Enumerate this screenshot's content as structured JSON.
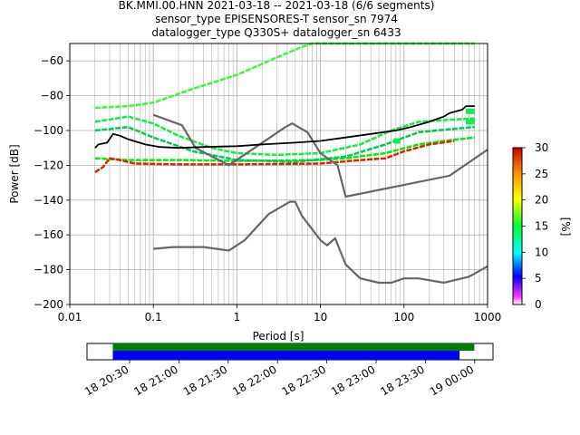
{
  "title_lines": [
    "BK.MMI.00.HNN   2021-03-18 -- 2021-03-18  (6/6 segments)",
    "sensor_type EPISENSORES-T sensor_sn 7974",
    "datalogger_type Q330S+ datalogger_sn 6433"
  ],
  "chart_data": [
    {
      "type": "heatmap",
      "subtype": "ppsd",
      "xlabel": "Period [s]",
      "ylabel": "Power [dB]",
      "xscale": "log",
      "xlim": [
        0.01,
        1000
      ],
      "ylim": [
        -200,
        -50
      ],
      "x_ticks": [
        "0.01",
        "0.1",
        "1",
        "10",
        "100",
        "1000"
      ],
      "y_ticks": [
        "−200",
        "−180",
        "−160",
        "−140",
        "−120",
        "−100",
        "−80",
        "−60"
      ],
      "grid": true,
      "colorbar": {
        "label": "[%]",
        "range": [
          0,
          30
        ],
        "ticks": [
          "0",
          "5",
          "10",
          "15",
          "20",
          "25",
          "30"
        ]
      },
      "noise_models": {
        "high": [
          [
            0.1,
            -91
          ],
          [
            0.22,
            -97
          ],
          [
            0.32,
            -110
          ],
          [
            0.8,
            -120
          ],
          [
            3.8,
            -98
          ],
          [
            4.6,
            -96
          ],
          [
            7,
            -101
          ],
          [
            10,
            -113
          ],
          [
            15,
            -119
          ],
          [
            16,
            -120
          ],
          [
            20,
            -138
          ],
          [
            350,
            -126
          ],
          [
            1000,
            -111
          ]
        ],
        "low": [
          [
            0.1,
            -168
          ],
          [
            0.17,
            -167
          ],
          [
            0.4,
            -167
          ],
          [
            0.8,
            -169
          ],
          [
            1.24,
            -163
          ],
          [
            2.4,
            -148
          ],
          [
            4.3,
            -141
          ],
          [
            5,
            -141
          ],
          [
            6,
            -149
          ],
          [
            10,
            -163
          ],
          [
            12,
            -166
          ],
          [
            15,
            -162
          ],
          [
            20,
            -177
          ],
          [
            30,
            -185
          ],
          [
            50,
            -187.5
          ],
          [
            70,
            -187.5
          ],
          [
            100,
            -185
          ],
          [
            150,
            -185
          ],
          [
            300,
            -187.5
          ],
          [
            600,
            -184
          ],
          [
            1000,
            -178
          ]
        ]
      },
      "mean_curve": [
        [
          0.02,
          -110
        ],
        [
          0.022,
          -108
        ],
        [
          0.028,
          -107
        ],
        [
          0.033,
          -102
        ],
        [
          0.04,
          -103
        ],
        [
          0.05,
          -105
        ],
        [
          0.08,
          -108
        ],
        [
          0.12,
          -109.5
        ],
        [
          0.2,
          -110
        ],
        [
          0.4,
          -109.5
        ],
        [
          1,
          -109
        ],
        [
          2,
          -108
        ],
        [
          5,
          -107
        ],
        [
          10,
          -106
        ],
        [
          20,
          -104
        ],
        [
          40,
          -102
        ],
        [
          80,
          -100
        ],
        [
          120,
          -98
        ],
        [
          200,
          -95
        ],
        [
          300,
          -92
        ],
        [
          350,
          -90
        ],
        [
          500,
          -88
        ],
        [
          550,
          -86
        ],
        [
          700,
          -86
        ]
      ],
      "density_bands": [
        {
          "name": "lower",
          "color": "#00ee00",
          "points": [
            [
              0.02,
              -116
            ],
            [
              0.05,
              -117
            ],
            [
              0.2,
              -117
            ],
            [
              1,
              -117.5
            ],
            [
              10,
              -117
            ],
            [
              20,
              -116
            ],
            [
              60,
              -113
            ],
            [
              150,
              -108
            ],
            [
              300,
              -106
            ],
            [
              700,
              -104
            ]
          ]
        },
        {
          "name": "upper",
          "color": "#33ff33",
          "points": [
            [
              0.02,
              -87
            ],
            [
              0.05,
              -86
            ],
            [
              0.1,
              -84
            ],
            [
              0.3,
              -76
            ],
            [
              1,
              -68
            ],
            [
              3,
              -58
            ],
            [
              6,
              -52
            ],
            [
              8,
              -50
            ],
            [
              700,
              -50
            ]
          ]
        },
        {
          "name": "mid1",
          "color": "#11ee44",
          "points": [
            [
              0.02,
              -95
            ],
            [
              0.05,
              -92
            ],
            [
              0.1,
              -96
            ],
            [
              0.2,
              -103
            ],
            [
              0.5,
              -110
            ],
            [
              1,
              -113
            ],
            [
              3,
              -114
            ],
            [
              10,
              -113
            ],
            [
              30,
              -108
            ],
            [
              70,
              -100
            ],
            [
              150,
              -95
            ],
            [
              300,
              -94
            ],
            [
              700,
              -93
            ]
          ]
        },
        {
          "name": "mid2",
          "color": "#00cc55",
          "points": [
            [
              0.02,
              -100
            ],
            [
              0.05,
              -98
            ],
            [
              0.1,
              -104
            ],
            [
              0.3,
              -112
            ],
            [
              1,
              -117
            ],
            [
              5,
              -118
            ],
            [
              20,
              -115
            ],
            [
              60,
              -108
            ],
            [
              150,
              -101
            ],
            [
              400,
              -99
            ],
            [
              700,
              -98
            ]
          ]
        },
        {
          "name": "low-red",
          "color": "#dd2200",
          "points": [
            [
              0.02,
              -124
            ],
            [
              0.025,
              -121
            ],
            [
              0.03,
              -116
            ],
            [
              0.04,
              -117
            ],
            [
              0.06,
              -119
            ],
            [
              0.2,
              -119.5
            ],
            [
              1,
              -119.5
            ],
            [
              10,
              -119
            ],
            [
              30,
              -117
            ],
            [
              60,
              -116
            ],
            [
              100,
              -112
            ],
            [
              200,
              -108
            ],
            [
              400,
              -106
            ]
          ]
        }
      ],
      "patches": [
        {
          "x": [
            550,
            700
          ],
          "y": -89,
          "color": "#11ee55"
        },
        {
          "x": [
            550,
            700
          ],
          "y": -95,
          "color": "#11ee55"
        },
        {
          "x": [
            75,
            90
          ],
          "y": -106,
          "color": "#11ee55"
        }
      ]
    },
    {
      "type": "timeline",
      "x_ticks": [
        "18 20:30",
        "18 21:00",
        "18 21:30",
        "18 22:00",
        "18 22:30",
        "18 23:00",
        "18 23:30",
        "19 00:00"
      ],
      "tracks": [
        {
          "name": "data",
          "color": "#008000",
          "start": "20:20",
          "end": "00:00"
        },
        {
          "name": "psd",
          "color": "#0000ff",
          "start": "20:20",
          "end": "23:51"
        }
      ]
    }
  ]
}
